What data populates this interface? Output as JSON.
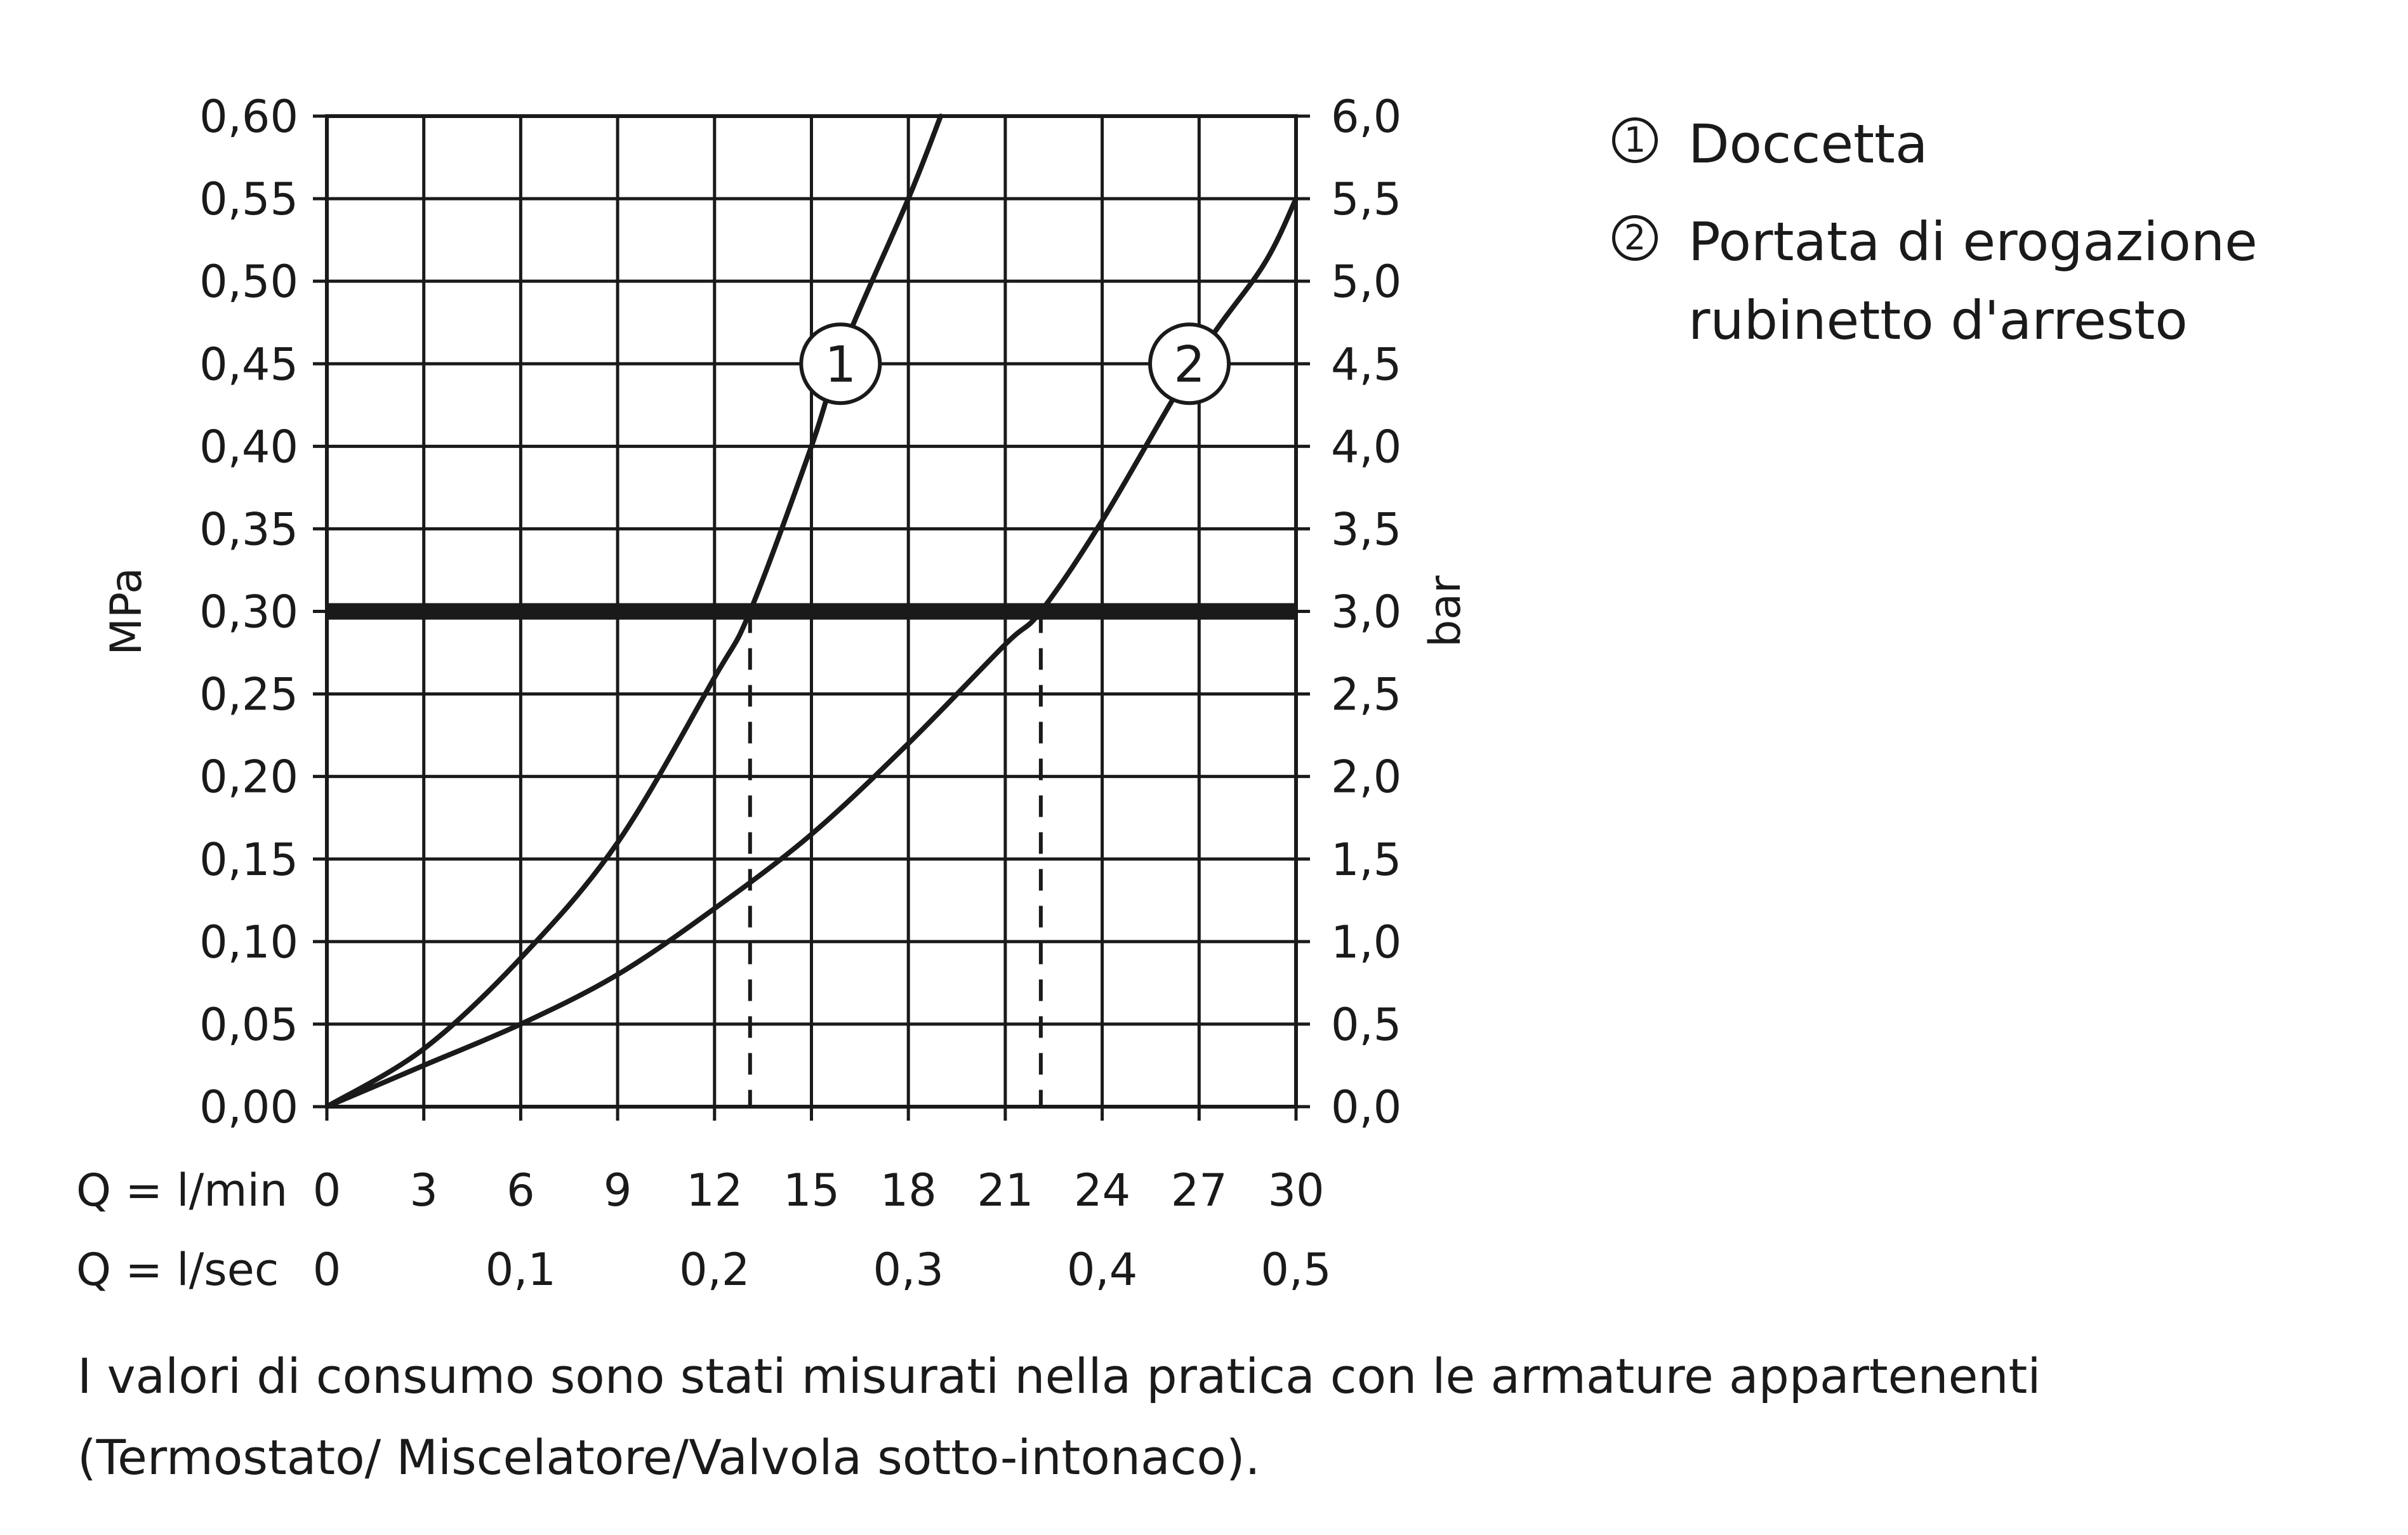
{
  "chart_data": {
    "type": "line",
    "left_axis": {
      "label": "MPa",
      "range": [
        0,
        0.6
      ],
      "ticks": [
        "0,00",
        "0,05",
        "0,10",
        "0,15",
        "0,20",
        "0,25",
        "0,30",
        "0,35",
        "0,40",
        "0,45",
        "0,50",
        "0,55",
        "0,60"
      ]
    },
    "right_axis": {
      "label": "bar",
      "range": [
        0,
        6
      ],
      "ticks": [
        "0,0",
        "0,5",
        "1,0",
        "1,5",
        "2,0",
        "2,5",
        "3,0",
        "3,5",
        "4,0",
        "4,5",
        "5,0",
        "5,5",
        "6,0"
      ]
    },
    "x_axis": {
      "range": [
        0,
        30
      ],
      "lmin_label": "Q = l/min",
      "lmin_ticks": [
        {
          "value": 0,
          "text": "0"
        },
        {
          "value": 3,
          "text": "3"
        },
        {
          "value": 6,
          "text": "6"
        },
        {
          "value": 9,
          "text": "9"
        },
        {
          "value": 12,
          "text": "12"
        },
        {
          "value": 15,
          "text": "15"
        },
        {
          "value": 18,
          "text": "18"
        },
        {
          "value": 21,
          "text": "21"
        },
        {
          "value": 24,
          "text": "24"
        },
        {
          "value": 27,
          "text": "27"
        },
        {
          "value": 30,
          "text": "30"
        }
      ],
      "lsec_label": "Q = l/sec",
      "lsec_ticks": [
        {
          "value": 0,
          "text": "0"
        },
        {
          "value": 6,
          "text": "0,1"
        },
        {
          "value": 12,
          "text": "0,2"
        },
        {
          "value": 18,
          "text": "0,3"
        },
        {
          "value": 24,
          "text": "0,4"
        },
        {
          "value": 30,
          "text": "0,5"
        }
      ]
    },
    "grid": true,
    "reference_line": {
      "y": 0.3
    },
    "series": [
      {
        "marker": "1",
        "marker_at": {
          "x": 15.9,
          "y": 0.45
        },
        "drop_at": 13.1,
        "x": [
          0,
          3,
          6,
          9,
          12,
          13.1,
          15,
          16,
          18,
          19
        ],
        "y": [
          0,
          0.035,
          0.09,
          0.16,
          0.26,
          0.3,
          0.4,
          0.46,
          0.55,
          0.6
        ]
      },
      {
        "marker": "2",
        "marker_at": {
          "x": 26.7,
          "y": 0.45
        },
        "drop_at": 22.1,
        "x": [
          0,
          3,
          6,
          9,
          12,
          15,
          18,
          21,
          22.1,
          24,
          27,
          29,
          30
        ],
        "y": [
          0,
          0.025,
          0.05,
          0.08,
          0.12,
          0.165,
          0.22,
          0.28,
          0.3,
          0.355,
          0.455,
          0.51,
          0.55
        ]
      }
    ]
  },
  "legend": [
    {
      "num": "1",
      "text": "Doccetta"
    },
    {
      "num": "2",
      "text": "Portata di erogazione rubinetto d'arresto"
    }
  ],
  "note": "I valori di consumo sono stati misurati nella pratica con le armature appartenenti (Termostato/ Miscelatore/Valvola sotto-intonaco)."
}
